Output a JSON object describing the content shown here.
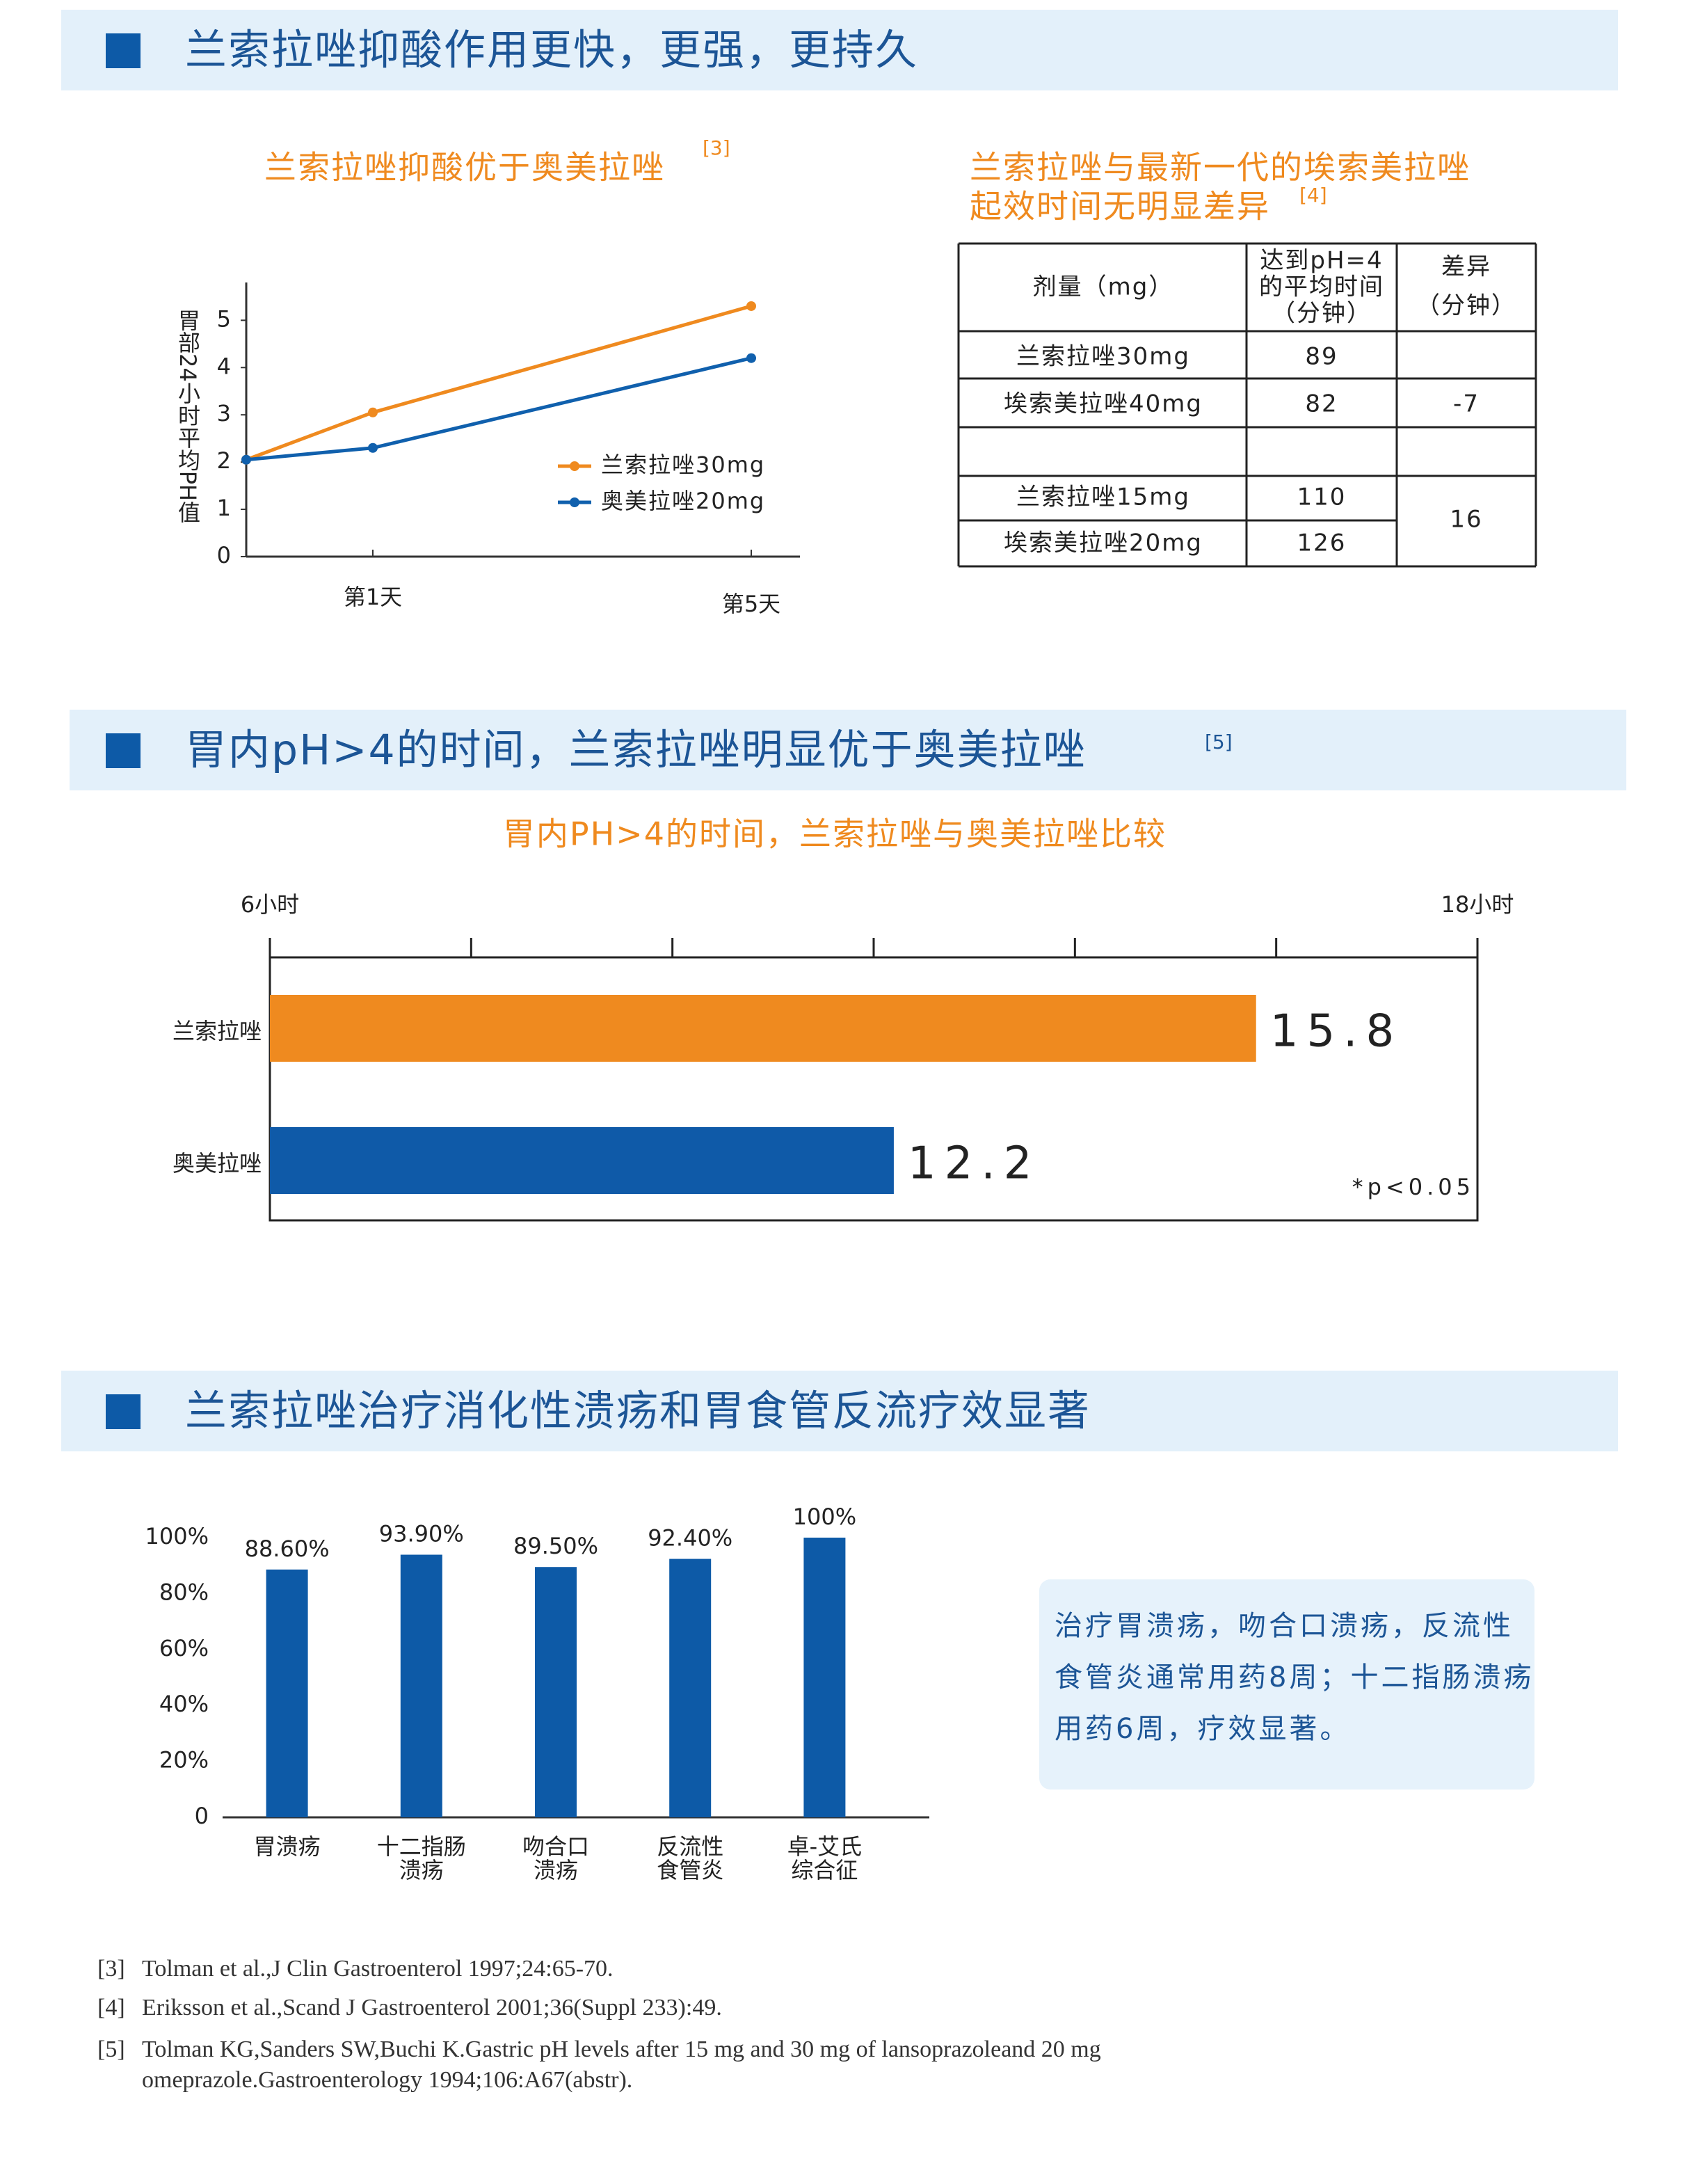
{
  "sections": [
    {
      "title": "兰索拉唑抑酸作用更快，更强，更持久"
    },
    {
      "title": "胃内pH>4的时间，兰索拉唑明显优于奥美拉唑",
      "ref": "[5]"
    },
    {
      "title": "兰索拉唑治疗消化性溃疡和胃食管反流疗效显著"
    }
  ],
  "chart_data": [
    {
      "type": "line",
      "title": "兰索拉唑抑酸优于奥美拉唑",
      "title_ref": "[3]",
      "ylabel": "胃部24小时平均PH值",
      "categories": [
        null,
        "第1天",
        "第5天"
      ],
      "series": [
        {
          "name": "兰索拉唑30mg",
          "color": "#ef8a1f",
          "values": [
            2.05,
            3.05,
            5.3
          ]
        },
        {
          "name": "奥美拉唑20mg",
          "color": "#1060ad",
          "values": [
            2.05,
            2.3,
            4.2
          ]
        }
      ],
      "ylim": [
        0,
        5.8
      ],
      "yticks": [
        0,
        1,
        2,
        3,
        4,
        5
      ],
      "legend": "right"
    },
    {
      "type": "hbar",
      "title": "胃内PH>4的时间，兰索拉唑与奥美拉唑比较",
      "categories": [
        "兰索拉唑",
        "奥美拉唑"
      ],
      "values": [
        15.8,
        12.2
      ],
      "colors": [
        "#ef8a1f",
        "#0f5aa8"
      ],
      "xlim": [
        6,
        18
      ],
      "xticks": [
        {
          "value": 6,
          "label": "6小时"
        },
        {
          "value": 18,
          "label": "18小时"
        }
      ],
      "xminor": [
        8,
        10,
        12,
        14,
        16
      ],
      "annotation": "*p<0.05"
    },
    {
      "type": "bar",
      "categories": [
        [
          "胃溃疡"
        ],
        [
          "十二指肠",
          "溃疡"
        ],
        [
          "吻合口",
          "溃疡"
        ],
        [
          "反流性",
          "食管炎"
        ],
        [
          "卓-艾氏",
          "综合征"
        ]
      ],
      "values": [
        88.6,
        93.9,
        89.5,
        92.4,
        100
      ],
      "value_labels": [
        "88.60%",
        "93.90%",
        "89.50%",
        "92.40%",
        "100%"
      ],
      "color": "#0d5aa7",
      "ylim": [
        0,
        100
      ],
      "yticks": [
        0,
        {
          "value": 20,
          "label": "20%"
        },
        {
          "value": 40,
          "label": "40%"
        },
        {
          "value": 60,
          "label": "60%"
        },
        {
          "value": 80,
          "label": "80%"
        },
        {
          "value": 100,
          "label": "100%"
        }
      ]
    }
  ],
  "table": {
    "title": [
      "兰索拉唑与最新一代的埃索美拉唑",
      "起效时间无明显差异"
    ],
    "title_ref": "[4]",
    "header": [
      [
        "剂量（mg）"
      ],
      [
        "达到pH=4",
        "的平均时间",
        "（分钟）"
      ],
      [
        "差异",
        "（分钟）"
      ]
    ],
    "rows": [
      [
        "兰索拉唑30mg",
        89,
        null
      ],
      [
        "埃索美拉唑40mg",
        82,
        -7
      ],
      [
        null,
        null,
        null
      ],
      [
        "兰索拉唑15mg",
        110,
        16
      ],
      [
        "埃索美拉唑20mg",
        126,
        null
      ]
    ]
  },
  "note": "治疗胃溃疡，吻合口溃疡，反流性食管炎通常用药8周；十二指肠溃疡用药6周，疗效显著。",
  "references": [
    {
      "label": "[3]",
      "text": "Tolman et al.,J Clin Gastroenterol 1997;24:65-70."
    },
    {
      "label": "[4]",
      "text": "Eriksson et al.,Scand J Gastroenterol 2001;36(Suppl 233):49."
    },
    {
      "label": "[5]",
      "text": "Tolman KG,Sanders SW,Buchi K.Gastric pH levels after 15 mg and 30 mg of lansoprazoleand 20 mg omeprazole.Gastroenterology 1994;106:A67(abstr)."
    }
  ]
}
